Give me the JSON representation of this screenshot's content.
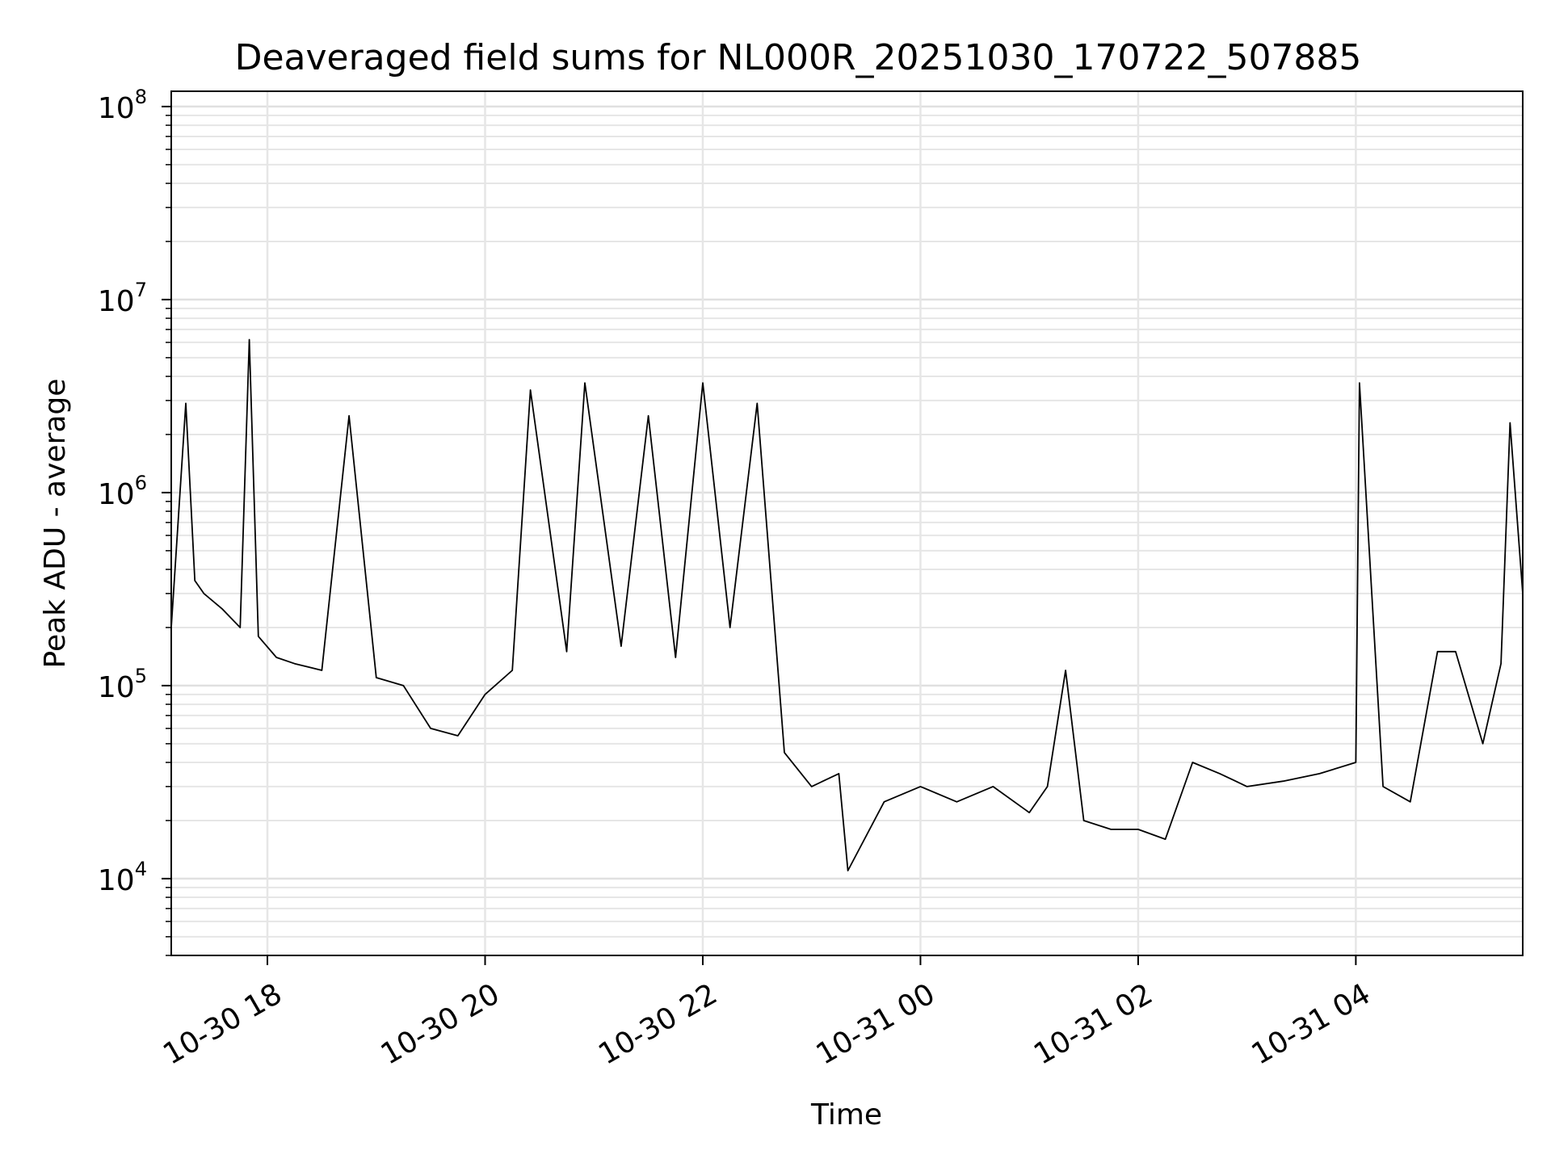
{
  "chart_data": {
    "type": "line",
    "title": "Deaveraged field sums for NL000R_20251030_170722_507885",
    "xlabel": "Time",
    "ylabel": "Peak ADU - average",
    "yscale": "log",
    "ylim": [
      4000,
      120000000
    ],
    "xlim": [
      "2025-10-30 17:07",
      "2025-10-31 05:32"
    ],
    "grid": true,
    "x_ticks": [
      {
        "at": "2025-10-30 18:00",
        "label": "10-30 18"
      },
      {
        "at": "2025-10-30 20:00",
        "label": "10-30 20"
      },
      {
        "at": "2025-10-30 22:00",
        "label": "10-30 22"
      },
      {
        "at": "2025-10-31 00:00",
        "label": "10-31 00"
      },
      {
        "at": "2025-10-31 02:00",
        "label": "10-31 02"
      },
      {
        "at": "2025-10-31 04:00",
        "label": "10-31 04"
      }
    ],
    "y_ticks": [
      {
        "value": 10000,
        "base": "10",
        "exp": "4"
      },
      {
        "value": 100000,
        "base": "10",
        "exp": "5"
      },
      {
        "value": 1000000,
        "base": "10",
        "exp": "6"
      },
      {
        "value": 10000000,
        "base": "10",
        "exp": "7"
      },
      {
        "value": 100000000,
        "base": "10",
        "exp": "8"
      }
    ],
    "series": [
      {
        "color": "#000000",
        "x": [
          "2025-10-30 17:07",
          "2025-10-30 17:15",
          "2025-10-30 17:20",
          "2025-10-30 17:25",
          "2025-10-30 17:35",
          "2025-10-30 17:45",
          "2025-10-30 17:50",
          "2025-10-30 17:55",
          "2025-10-30 18:05",
          "2025-10-30 18:15",
          "2025-10-30 18:30",
          "2025-10-30 18:45",
          "2025-10-30 19:00",
          "2025-10-30 19:15",
          "2025-10-30 19:30",
          "2025-10-30 19:45",
          "2025-10-30 20:00",
          "2025-10-30 20:15",
          "2025-10-30 20:25",
          "2025-10-30 20:45",
          "2025-10-30 20:55",
          "2025-10-30 21:15",
          "2025-10-30 21:30",
          "2025-10-30 21:45",
          "2025-10-30 22:00",
          "2025-10-30 22:15",
          "2025-10-30 22:30",
          "2025-10-30 22:45",
          "2025-10-30 23:00",
          "2025-10-30 23:15",
          "2025-10-30 23:20",
          "2025-10-30 23:40",
          "2025-10-31 00:00",
          "2025-10-31 00:20",
          "2025-10-31 00:40",
          "2025-10-31 01:00",
          "2025-10-31 01:10",
          "2025-10-31 01:20",
          "2025-10-31 01:30",
          "2025-10-31 01:45",
          "2025-10-31 02:00",
          "2025-10-31 02:15",
          "2025-10-31 02:30",
          "2025-10-31 02:45",
          "2025-10-31 03:00",
          "2025-10-31 03:20",
          "2025-10-31 03:40",
          "2025-10-31 04:00",
          "2025-10-31 04:02",
          "2025-10-31 04:15",
          "2025-10-31 04:30",
          "2025-10-31 04:45",
          "2025-10-31 04:55",
          "2025-10-31 05:10",
          "2025-10-31 05:20",
          "2025-10-31 05:25",
          "2025-10-31 05:32"
        ],
        "y": [
          200000,
          2900000,
          350000,
          300000,
          250000,
          200000,
          6200000,
          180000,
          140000,
          130000,
          120000,
          2500000,
          110000,
          100000,
          60000,
          55000,
          90000,
          120000,
          3400000,
          150000,
          3700000,
          160000,
          2500000,
          140000,
          3700000,
          200000,
          2900000,
          45000,
          30000,
          35000,
          11000,
          25000,
          30000,
          25000,
          30000,
          22000,
          30000,
          120000,
          20000,
          18000,
          18000,
          16000,
          40000,
          35000,
          30000,
          32000,
          35000,
          40000,
          3700000,
          30000,
          25000,
          150000,
          150000,
          50000,
          130000,
          2300000,
          300000
        ]
      }
    ]
  }
}
